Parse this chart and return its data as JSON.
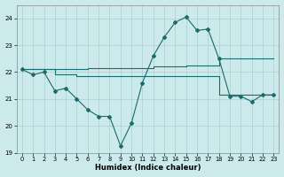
{
  "xlabel": "Humidex (Indice chaleur)",
  "background_color": "#cce9ec",
  "grid_color": "#aacdd1",
  "line_color": "#1a6b6b",
  "xlim": [
    -0.5,
    23.5
  ],
  "ylim": [
    19,
    24.5
  ],
  "yticks": [
    19,
    20,
    21,
    22,
    23,
    24
  ],
  "xticks": [
    0,
    1,
    2,
    3,
    4,
    5,
    6,
    7,
    8,
    9,
    10,
    11,
    12,
    13,
    14,
    15,
    16,
    17,
    18,
    19,
    20,
    21,
    22,
    23
  ],
  "line1_x": [
    0,
    1,
    2,
    3,
    4,
    5,
    6,
    7,
    8,
    9,
    10,
    11,
    12,
    13,
    14,
    15,
    16,
    17,
    18,
    19,
    20,
    21,
    22,
    23
  ],
  "line1_y": [
    22.1,
    21.9,
    22.0,
    21.3,
    21.4,
    21.0,
    20.6,
    20.35,
    20.35,
    19.25,
    20.1,
    21.6,
    22.6,
    23.3,
    23.85,
    24.05,
    23.55,
    23.6,
    22.5,
    21.1,
    21.1,
    20.9,
    21.15,
    21.15
  ],
  "line2_x": [
    0,
    1,
    2,
    3,
    4,
    5,
    6,
    7,
    8,
    9,
    10,
    11,
    12,
    13,
    14,
    15,
    16,
    17,
    18,
    19,
    20,
    21,
    22,
    23
  ],
  "line2_y": [
    22.1,
    22.1,
    22.1,
    22.1,
    22.1,
    22.1,
    22.15,
    22.15,
    22.15,
    22.15,
    22.15,
    22.15,
    22.2,
    22.2,
    22.2,
    22.25,
    22.25,
    22.25,
    22.5,
    22.5,
    22.5,
    22.5,
    22.5,
    22.5
  ],
  "line3_x": [
    0,
    1,
    2,
    3,
    4,
    5,
    6,
    7,
    8,
    9,
    10,
    11,
    12,
    13,
    14,
    15,
    16,
    17,
    18,
    19,
    20,
    21,
    22,
    23
  ],
  "line3_y": [
    22.1,
    22.1,
    22.1,
    21.9,
    21.9,
    21.85,
    21.85,
    21.85,
    21.85,
    21.85,
    21.85,
    21.85,
    21.85,
    21.85,
    21.85,
    21.85,
    21.85,
    21.85,
    21.15,
    21.15,
    21.15,
    21.15,
    21.15,
    21.15
  ]
}
